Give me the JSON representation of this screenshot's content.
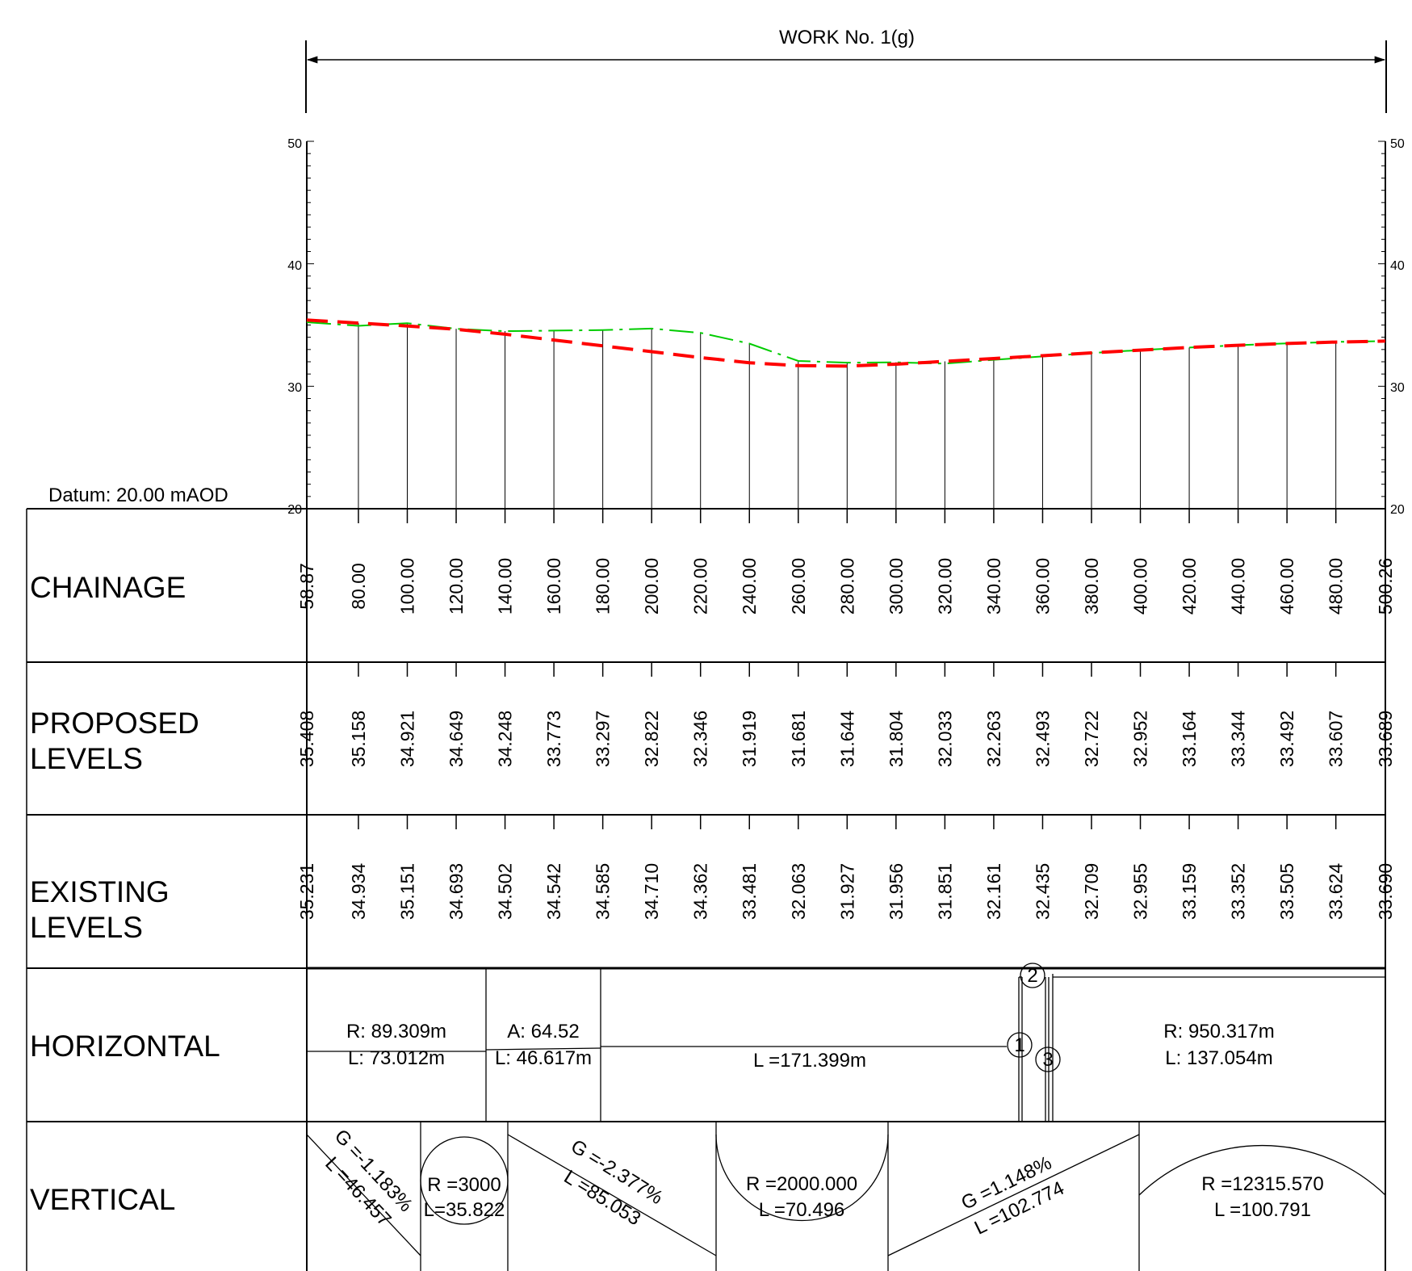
{
  "work_title": "WORK No. 1(g)",
  "datum": "Datum: 20.00 mAOD",
  "axis_ticks": [
    "50",
    "40",
    "30",
    "20"
  ],
  "rows": {
    "chainage": "CHAINAGE",
    "proposed_1": "PROPOSED",
    "proposed_2": "LEVELS",
    "existing_1": "EXISTING",
    "existing_2": "LEVELS",
    "horizontal": "HORIZONTAL",
    "vertical": "VERTICAL"
  },
  "chart_data": {
    "type": "line",
    "ylim": [
      20,
      50
    ],
    "x": [
      58.87,
      80,
      100,
      120,
      140,
      160,
      180,
      200,
      220,
      240,
      260,
      280,
      300,
      320,
      340,
      360,
      380,
      400,
      420,
      440,
      460,
      480,
      500.26
    ],
    "chainage_labels": [
      "58.87",
      "80.00",
      "100.00",
      "120.00",
      "140.00",
      "160.00",
      "180.00",
      "200.00",
      "220.00",
      "240.00",
      "260.00",
      "280.00",
      "300.00",
      "320.00",
      "340.00",
      "360.00",
      "380.00",
      "400.00",
      "420.00",
      "440.00",
      "460.00",
      "480.00",
      "500.26"
    ],
    "series": [
      {
        "color": "#ff0000",
        "labels": [
          "35.408",
          "35.158",
          "34.921",
          "34.649",
          "34.248",
          "33.773",
          "33.297",
          "32.822",
          "32.346",
          "31.919",
          "31.681",
          "31.644",
          "31.804",
          "32.033",
          "32.263",
          "32.493",
          "32.722",
          "32.952",
          "33.164",
          "33.344",
          "33.492",
          "33.607",
          "33.689"
        ],
        "values": [
          35.408,
          35.158,
          34.921,
          34.649,
          34.248,
          33.773,
          33.297,
          32.822,
          32.346,
          31.919,
          31.681,
          31.644,
          31.804,
          32.033,
          32.263,
          32.493,
          32.722,
          32.952,
          33.164,
          33.344,
          33.492,
          33.607,
          33.689
        ]
      },
      {
        "color": "#00cc00",
        "labels": [
          "35.231",
          "34.934",
          "35.151",
          "34.693",
          "34.502",
          "34.542",
          "34.585",
          "34.710",
          "34.362",
          "33.481",
          "32.063",
          "31.927",
          "31.956",
          "31.851",
          "32.161",
          "32.435",
          "32.709",
          "32.955",
          "33.159",
          "33.352",
          "33.505",
          "33.624",
          "33.690"
        ],
        "values": [
          35.231,
          34.934,
          35.151,
          34.693,
          34.502,
          34.542,
          34.585,
          34.71,
          34.362,
          33.481,
          32.063,
          31.927,
          31.956,
          31.851,
          32.161,
          32.435,
          32.709,
          32.955,
          33.159,
          33.352,
          33.505,
          33.624,
          33.69
        ]
      }
    ]
  },
  "horizontal": {
    "curve1_r": "R: 89.309m",
    "curve1_l": "L: 73.012m",
    "spiral_a": "A: 64.52",
    "spiral_l": "L: 46.617m",
    "straight_l": "L =171.399m",
    "curve2_r": "R: 950.317m",
    "curve2_l": "L: 137.054m",
    "markers": [
      "1",
      "2",
      "3"
    ]
  },
  "vertical": {
    "g1": "G =-1.183%",
    "l1": "L =46.457",
    "r1": "R =3000",
    "lr1": "L=35.822",
    "g2": "G =-2.377%",
    "l2": "L =85.053",
    "r2": "R =2000.000",
    "lr2": "L =70.496",
    "g3": "G =1.148%",
    "l3": "L =102.774",
    "r3": "R =12315.570",
    "lr3": "L =100.791"
  },
  "colors": {
    "proposed": "#ff0000",
    "existing": "#00cc00"
  }
}
